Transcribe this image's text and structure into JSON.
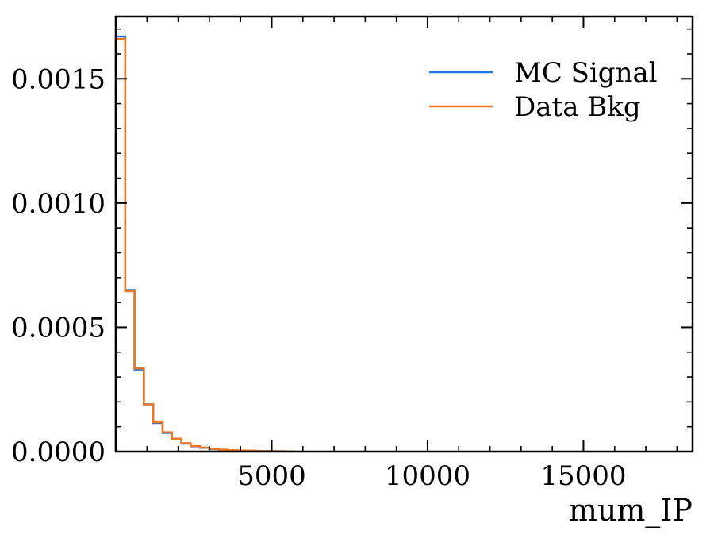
{
  "chart_data": {
    "type": "line",
    "subtype": "step-histogram",
    "title": "",
    "xlabel": "mum_IP",
    "ylabel": "",
    "xlim": [
      0,
      18500
    ],
    "ylim": [
      0,
      0.00175
    ],
    "x_ticks": [
      5000,
      10000,
      15000
    ],
    "x_tick_labels": [
      "5000",
      "10000",
      "15000"
    ],
    "y_ticks": [
      0.0,
      0.0005,
      0.001,
      0.0015
    ],
    "y_tick_labels": [
      "0.0000",
      "0.0005",
      "0.0010",
      "0.0015"
    ],
    "grid": false,
    "legend_position": "top-right",
    "bin_edges": [
      0,
      300,
      600,
      900,
      1200,
      1500,
      1800,
      2100,
      2400,
      2700,
      3000,
      3300,
      3600,
      3900,
      4200,
      4500,
      4800,
      5100,
      5400,
      5700
    ],
    "series": [
      {
        "name": "MC Signal",
        "color": "#1f77e4",
        "values": [
          0.00167,
          0.00065,
          0.00033,
          0.00019,
          0.000115,
          7.5e-05,
          5e-05,
          3.2e-05,
          2.1e-05,
          1.5e-05,
          1e-05,
          7e-06,
          5e-06,
          4e-06,
          3e-06,
          2e-06,
          1.5e-06,
          1e-06,
          8e-07
        ]
      },
      {
        "name": "Data Bkg",
        "color": "#f07820",
        "values": [
          0.00166,
          0.000645,
          0.000335,
          0.00019,
          0.000118,
          7.8e-05,
          5.2e-05,
          3.4e-05,
          2.2e-05,
          1.6e-05,
          1.1e-05,
          7.5e-06,
          5.5e-06,
          4e-06,
          3e-06,
          2e-06,
          1.6e-06,
          1.1e-06,
          8e-07
        ]
      }
    ]
  }
}
